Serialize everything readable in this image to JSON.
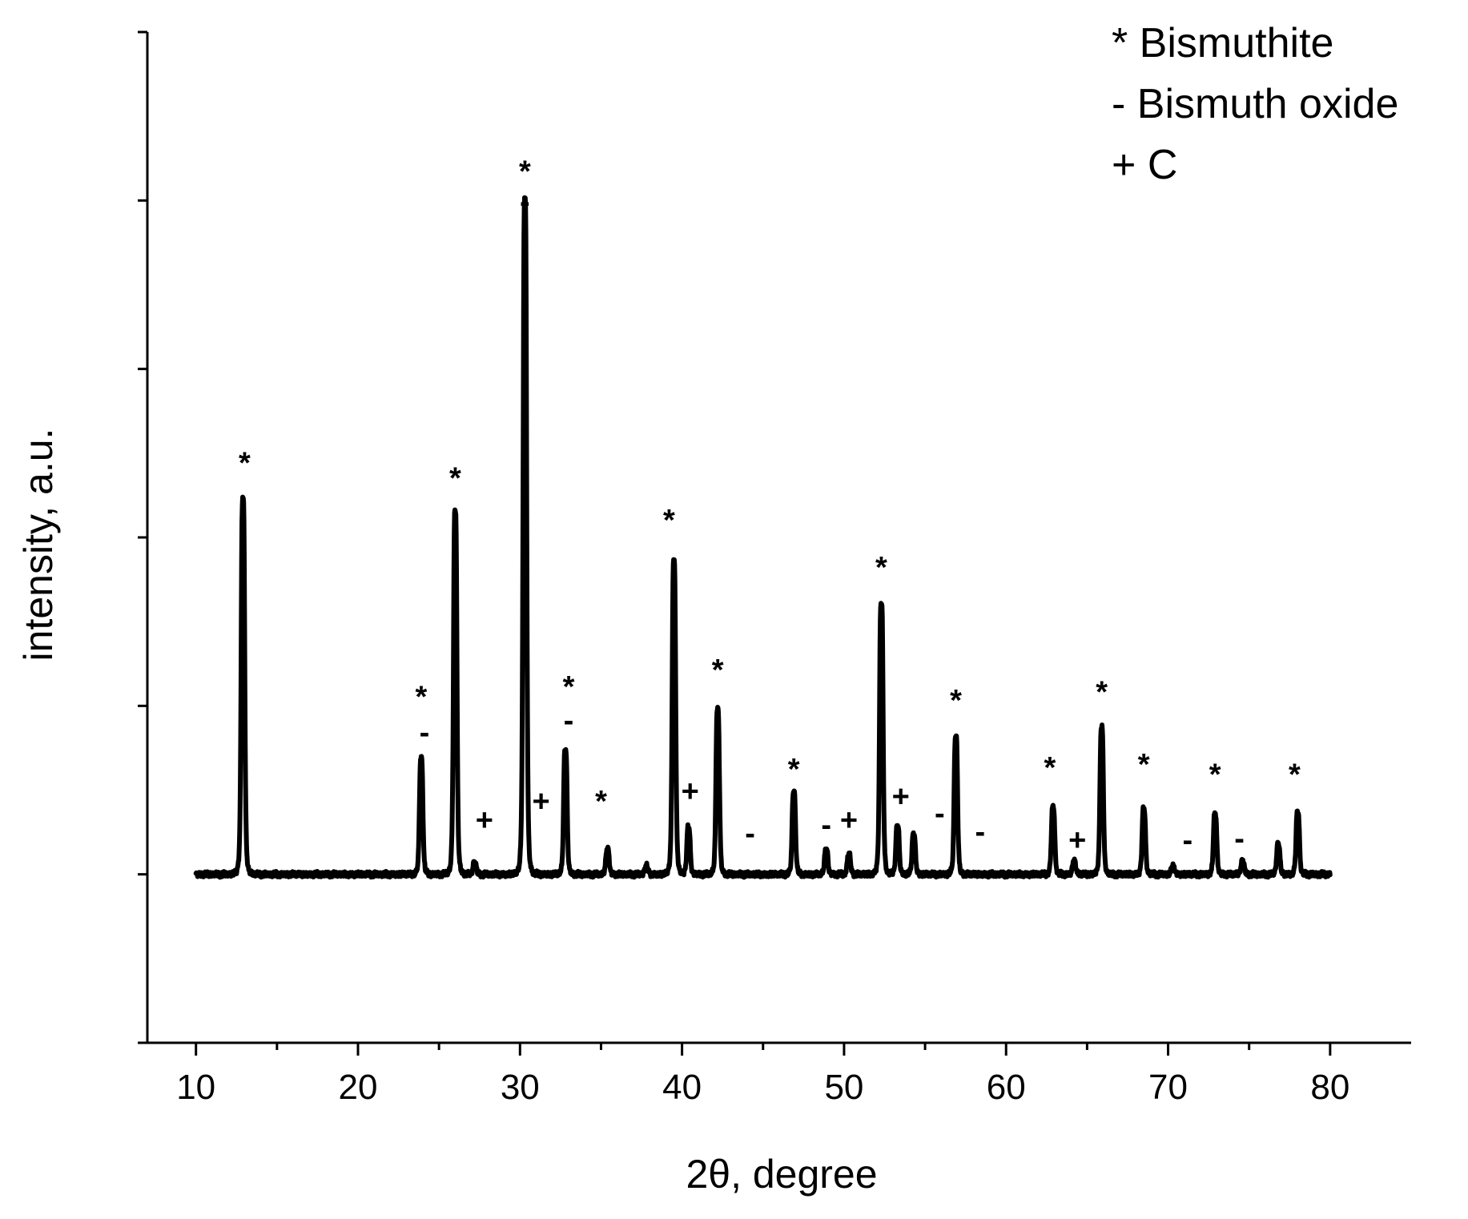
{
  "chart_data": {
    "type": "line",
    "title": "",
    "xlabel": "2θ, degree",
    "ylabel": "intensity, a.u.",
    "xlim": [
      7,
      85
    ],
    "ylim": [
      -1,
      5
    ],
    "x_ticks": [
      10,
      20,
      30,
      40,
      50,
      60,
      70,
      80
    ],
    "x_tick_labels": [
      "10",
      "20",
      "30",
      "40",
      "50",
      "60",
      "70",
      "80"
    ],
    "y_ticks": [
      -1,
      0,
      1,
      2,
      3,
      4,
      5
    ],
    "y_tick_labels_shown": false,
    "grid": false,
    "legend_position": "top-right",
    "legend": [
      {
        "symbol": "*",
        "label": "* Bismuthite"
      },
      {
        "symbol": "-",
        "label": "- Bismuth oxide"
      },
      {
        "symbol": "+",
        "label": "+ C"
      }
    ],
    "baseline": 0.0,
    "peak_width": 0.12,
    "series": [
      {
        "peaks": [
          {
            "x": 12.9,
            "y": 2.23
          },
          {
            "x": 23.9,
            "y": 0.69
          },
          {
            "x": 26.0,
            "y": 2.16
          },
          {
            "x": 27.2,
            "y": 0.07
          },
          {
            "x": 30.3,
            "y": 4.02
          },
          {
            "x": 32.8,
            "y": 0.74
          },
          {
            "x": 35.4,
            "y": 0.15
          },
          {
            "x": 37.8,
            "y": 0.05
          },
          {
            "x": 39.5,
            "y": 1.86
          },
          {
            "x": 40.4,
            "y": 0.28
          },
          {
            "x": 42.2,
            "y": 0.98
          },
          {
            "x": 46.9,
            "y": 0.49
          },
          {
            "x": 48.9,
            "y": 0.15
          },
          {
            "x": 50.3,
            "y": 0.12
          },
          {
            "x": 52.3,
            "y": 1.61
          },
          {
            "x": 53.3,
            "y": 0.29
          },
          {
            "x": 54.3,
            "y": 0.24
          },
          {
            "x": 56.9,
            "y": 0.82
          },
          {
            "x": 62.9,
            "y": 0.4
          },
          {
            "x": 64.2,
            "y": 0.08
          },
          {
            "x": 65.9,
            "y": 0.87
          },
          {
            "x": 68.5,
            "y": 0.39
          },
          {
            "x": 70.3,
            "y": 0.05
          },
          {
            "x": 72.9,
            "y": 0.36
          },
          {
            "x": 74.6,
            "y": 0.08
          },
          {
            "x": 76.8,
            "y": 0.18
          },
          {
            "x": 78.0,
            "y": 0.37
          }
        ]
      }
    ],
    "annotations": [
      {
        "text": "*",
        "x": 13.0,
        "y": 2.45
      },
      {
        "text": "*",
        "x": 23.9,
        "y": 1.06
      },
      {
        "text": "-",
        "x": 24.1,
        "y": 0.85
      },
      {
        "text": "*",
        "x": 26.0,
        "y": 2.36
      },
      {
        "text": "+",
        "x": 27.8,
        "y": 0.33
      },
      {
        "text": "*",
        "x": 30.3,
        "y": 4.18
      },
      {
        "text": "-",
        "x": 30.3,
        "y": 4.0
      },
      {
        "text": "+",
        "x": 31.3,
        "y": 0.44
      },
      {
        "text": "*",
        "x": 33.0,
        "y": 1.12
      },
      {
        "text": "-",
        "x": 33.0,
        "y": 0.92
      },
      {
        "text": "*",
        "x": 35.0,
        "y": 0.44
      },
      {
        "text": "*",
        "x": 39.2,
        "y": 2.11
      },
      {
        "text": "+",
        "x": 40.5,
        "y": 0.5
      },
      {
        "text": "*",
        "x": 42.2,
        "y": 1.22
      },
      {
        "text": "-",
        "x": 44.2,
        "y": 0.25
      },
      {
        "text": "*",
        "x": 46.9,
        "y": 0.63
      },
      {
        "text": "-",
        "x": 48.9,
        "y": 0.3
      },
      {
        "text": "+",
        "x": 50.3,
        "y": 0.33
      },
      {
        "text": "*",
        "x": 52.3,
        "y": 1.83
      },
      {
        "text": "+",
        "x": 53.5,
        "y": 0.47
      },
      {
        "text": "-",
        "x": 55.9,
        "y": 0.37
      },
      {
        "text": "*",
        "x": 56.9,
        "y": 1.04
      },
      {
        "text": "-",
        "x": 58.4,
        "y": 0.26
      },
      {
        "text": "*",
        "x": 62.7,
        "y": 0.64
      },
      {
        "text": "+",
        "x": 64.4,
        "y": 0.21
      },
      {
        "text": "*",
        "x": 65.9,
        "y": 1.09
      },
      {
        "text": "*",
        "x": 68.5,
        "y": 0.66
      },
      {
        "text": "-",
        "x": 71.2,
        "y": 0.21
      },
      {
        "text": "*",
        "x": 72.9,
        "y": 0.6
      },
      {
        "text": "-",
        "x": 74.4,
        "y": 0.22
      },
      {
        "text": "*",
        "x": 77.8,
        "y": 0.6
      }
    ]
  }
}
